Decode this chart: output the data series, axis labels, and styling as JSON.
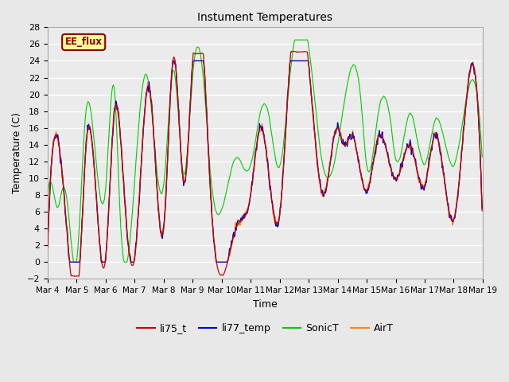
{
  "title": "Instument Temperatures",
  "xlabel": "Time",
  "ylabel": "Temperature (C)",
  "ylim": [
    -2,
    28
  ],
  "yticks": [
    -2,
    0,
    2,
    4,
    6,
    8,
    10,
    12,
    14,
    16,
    18,
    20,
    22,
    24,
    26,
    28
  ],
  "colors": {
    "li75_t": "#cc0000",
    "li77_temp": "#0000cc",
    "SonicT": "#00cc00",
    "AirT": "#ff8800"
  },
  "annotation_text": "EE_flux",
  "bg_color": "#e8e8e8",
  "plot_bg": "#ebebeb",
  "grid_color": "#ffffff",
  "x_start": 4,
  "x_end": 19,
  "xtick_positions": [
    4,
    5,
    6,
    7,
    8,
    9,
    10,
    11,
    12,
    13,
    14,
    15,
    16,
    17,
    18,
    19
  ],
  "xtick_labels": [
    "Mar 4",
    "Mar 5",
    "Mar 6",
    "Mar 7",
    "Mar 8",
    "Mar 9",
    "Mar 10",
    "Mar 11",
    "Mar 12",
    "Mar 13",
    "Mar 14",
    "Mar 15",
    "Mar 16",
    "Mar 17",
    "Mar 18",
    "Mar 19"
  ]
}
